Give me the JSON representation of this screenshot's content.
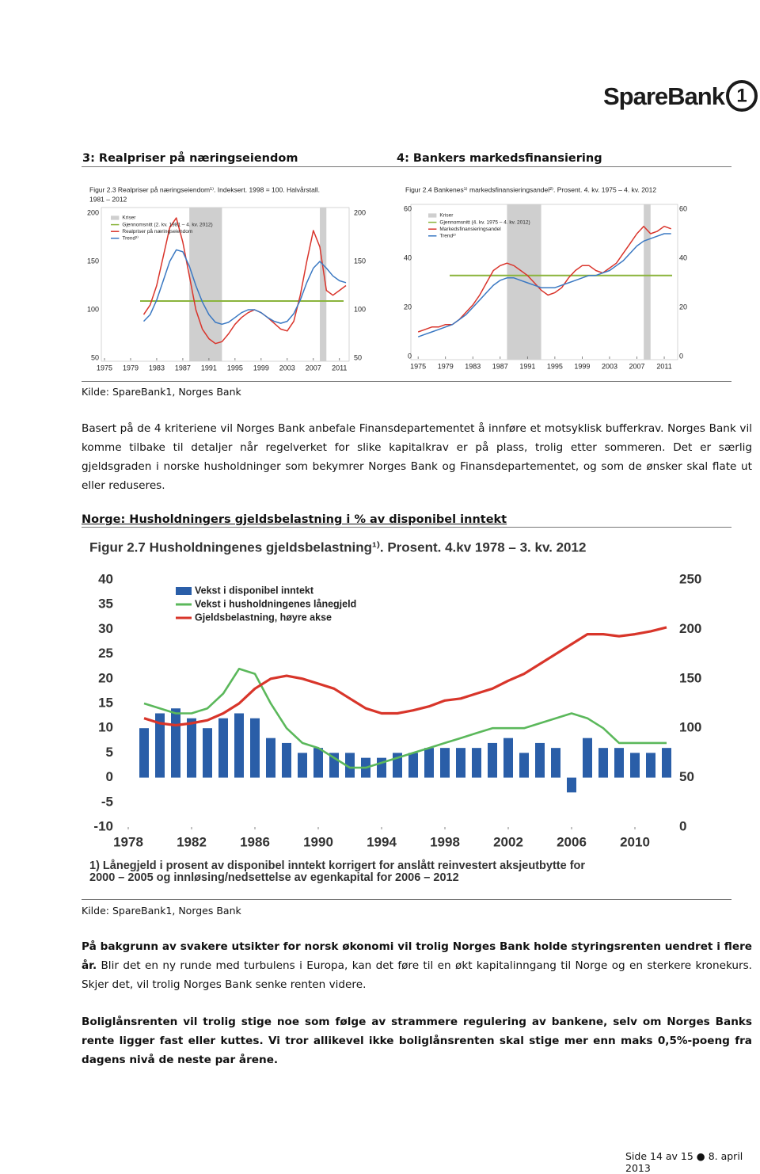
{
  "header": {
    "logo": "SpareBank",
    "logo_mark": "1"
  },
  "section_titles": [
    "3:  Realpriser på næringseiendom",
    "4: Bankers markedsfinansiering"
  ],
  "chart_data": [
    {
      "type": "line",
      "title": [
        "Figur 2.3 Realpriser på næringseiendom¹⁾. Indeksert. 1998 = 100. Halvårstall.",
        "1981 – 2012"
      ],
      "crises_label": "Kriser",
      "crises_color": "#cfcfcf",
      "crises": [
        [
          1988,
          1993
        ],
        [
          2008,
          2009
        ]
      ],
      "average": {
        "name": "Gjennomsnitt (2. kv. 1981 – 4. kv. 2012)",
        "color": "#8ab43c",
        "value": 109
      },
      "x": [
        1981,
        1982,
        1983,
        1984,
        1985,
        1986,
        1987,
        1988,
        1989,
        1990,
        1991,
        1992,
        1993,
        1994,
        1995,
        1996,
        1997,
        1998,
        1999,
        2000,
        2001,
        2002,
        2003,
        2004,
        2005,
        2006,
        2007,
        2008,
        2009,
        2010,
        2011,
        2012
      ],
      "series": [
        {
          "name": "Realpriser på næringseiendom",
          "color": "#d9342b",
          "values": [
            95,
            105,
            125,
            155,
            185,
            195,
            170,
            135,
            100,
            80,
            70,
            65,
            67,
            75,
            85,
            92,
            97,
            100,
            97,
            92,
            86,
            80,
            78,
            88,
            115,
            150,
            182,
            165,
            120,
            115,
            120,
            125
          ]
        },
        {
          "name": "Trend²⁾",
          "color": "#3a78c2",
          "values": [
            88,
            95,
            110,
            130,
            150,
            162,
            160,
            145,
            125,
            108,
            95,
            87,
            85,
            87,
            92,
            97,
            100,
            100,
            97,
            92,
            88,
            86,
            88,
            96,
            110,
            128,
            143,
            150,
            143,
            135,
            130,
            128
          ]
        }
      ],
      "xlim": [
        1975,
        2012
      ],
      "xticks": [
        1975,
        1979,
        1983,
        1987,
        1991,
        1995,
        1999,
        2003,
        2007,
        2011
      ],
      "ylim": [
        50,
        200
      ],
      "yticks": [
        50,
        100,
        150,
        200
      ],
      "mirror_y": true
    },
    {
      "type": "line",
      "title": [
        "Figur 2.4 Bankenes¹⁾ markedsfinansieringsandel²⁾. Prosent. 4. kv. 1975 – 4. kv. 2012"
      ],
      "crises_label": "Kriser",
      "crises_color": "#cfcfcf",
      "crises": [
        [
          1988,
          1993
        ],
        [
          2008,
          2009
        ]
      ],
      "average": {
        "name": "Gjennomsnitt (4. kv. 1975 – 4. kv. 2012)",
        "color": "#8ab43c",
        "value": 33
      },
      "x": [
        1975,
        1976,
        1977,
        1978,
        1979,
        1980,
        1981,
        1982,
        1983,
        1984,
        1985,
        1986,
        1987,
        1988,
        1989,
        1990,
        1991,
        1992,
        1993,
        1994,
        1995,
        1996,
        1997,
        1998,
        1999,
        2000,
        2001,
        2002,
        2003,
        2004,
        2005,
        2006,
        2007,
        2008,
        2009,
        2010,
        2011,
        2012
      ],
      "series": [
        {
          "name": "Markedsfinansieringsandel",
          "color": "#d9342b",
          "values": [
            10,
            11,
            12,
            12,
            13,
            13,
            15,
            18,
            21,
            25,
            30,
            35,
            37,
            38,
            37,
            35,
            33,
            30,
            27,
            25,
            26,
            28,
            32,
            35,
            37,
            37,
            35,
            34,
            36,
            38,
            42,
            46,
            50,
            53,
            50,
            51,
            53,
            52
          ]
        },
        {
          "name": "Trend²⁾",
          "color": "#3a78c2",
          "values": [
            8,
            9,
            10,
            11,
            12,
            13,
            15,
            17,
            20,
            23,
            26,
            29,
            31,
            32,
            32,
            31,
            30,
            29,
            28,
            28,
            28,
            29,
            30,
            31,
            32,
            33,
            33,
            34,
            35,
            37,
            39,
            42,
            45,
            47,
            48,
            49,
            50,
            50
          ]
        }
      ],
      "xlim": [
        1974.4,
        2012.5
      ],
      "xticks": [
        1975,
        1979,
        1983,
        1987,
        1991,
        1995,
        1999,
        2003,
        2007,
        2011
      ],
      "ylim": [
        0,
        60
      ],
      "yticks": [
        0,
        20,
        40,
        60
      ],
      "mirror_y": true
    },
    {
      "type": "bar_line",
      "title": [
        "Figur 2.7 Husholdningenes gjeldsbelastning¹⁾. Prosent. 4.kv 1978 – 3. kv. 2012"
      ],
      "x": [
        1979,
        1980,
        1981,
        1982,
        1983,
        1984,
        1985,
        1986,
        1987,
        1988,
        1989,
        1990,
        1991,
        1992,
        1993,
        1994,
        1995,
        1996,
        1997,
        1998,
        1999,
        2000,
        2001,
        2002,
        2003,
        2004,
        2005,
        2006,
        2007,
        2008,
        2009,
        2010,
        2011,
        2012
      ],
      "series": [
        {
          "name": "Vekst i disponibel inntekt",
          "type": "bar",
          "color": "#2a5ea8",
          "values": [
            10,
            13,
            14,
            12,
            10,
            12,
            13,
            12,
            8,
            7,
            5,
            6,
            5,
            5,
            4,
            4,
            5,
            5,
            6,
            6,
            6,
            6,
            7,
            8,
            5,
            7,
            6,
            -3,
            8,
            6,
            6,
            5,
            5,
            6
          ]
        },
        {
          "name": "Vekst i husholdningenes lånegjeld",
          "type": "line",
          "color": "#5bb85b",
          "values": [
            15,
            14,
            13,
            13,
            14,
            17,
            22,
            21,
            15,
            10,
            7,
            6,
            4,
            2,
            2,
            3,
            4,
            5,
            6,
            7,
            8,
            9,
            10,
            10,
            10,
            11,
            12,
            13,
            12,
            10,
            7,
            7,
            7,
            7
          ]
        },
        {
          "name": "Gjeldsbelastning, høyre akse",
          "type": "line",
          "axis": "y2",
          "color": "#d8352a",
          "values": [
            110,
            105,
            103,
            105,
            108,
            115,
            125,
            140,
            150,
            153,
            150,
            145,
            140,
            130,
            120,
            115,
            115,
            118,
            122,
            128,
            130,
            135,
            140,
            148,
            155,
            165,
            175,
            185,
            195,
            195,
            193,
            195,
            198,
            202
          ]
        }
      ],
      "xlim": [
        1977.4,
        2012.4
      ],
      "xticks": [
        1978,
        1982,
        1986,
        1990,
        1994,
        1998,
        2002,
        2006,
        2010
      ],
      "ylim": [
        -10,
        40
      ],
      "yticks": [
        -10,
        -5,
        0,
        5,
        10,
        15,
        20,
        25,
        30,
        35,
        40
      ],
      "y2lim": [
        0,
        250
      ],
      "y2ticks": [
        0,
        50,
        100,
        150,
        200,
        250
      ],
      "footnote": [
        "1) Lånegjeld i prosent av disponibel inntekt korrigert for anslått reinvestert aksjeutbytte for",
        "2000 – 2005 og innløsing/nedsettelse av egenkapital for 2006 – 2012"
      ]
    }
  ],
  "source_1": "Kilde: SpareBank1, Norges Bank",
  "paragraph_1": "Basert på de 4 kriteriene vil Norges Bank anbefale Finansdepartementet å innføre et motsyklisk bufferkrav. Norges Bank vil komme tilbake til detaljer når regelverket for slike kapitalkrav er på plass, trolig etter sommeren. Det er særlig gjeldsgraden i norske husholdninger som bekymrer Norges Bank og Finansdepartementet, og som de ønsker skal flate ut eller reduseres.",
  "section_title_2": "Norge:  Husholdningers gjeldsbelastning i % av disponibel inntekt",
  "source_2": "Kilde: SpareBank1, Norges Bank",
  "paragraph_2": {
    "bold": "På bakgrunn av svakere utsikter for norsk økonomi vil trolig Norges Bank holde styringsrenten uendret i flere år.",
    "normal": "Blir det en ny runde med turbulens i Europa, kan det føre til en økt kapitalinngang til Norge og en sterkere kronekurs. Skjer det, vil trolig Norges Bank senke renten videre."
  },
  "paragraph_3": "Boliglånsrenten vil trolig stige noe som følge av strammere regulering av bankene, selv om Norges Banks rente ligger fast eller kuttes. Vi tror allikevel ikke boliglånsrenten skal stige mer enn maks 0,5%-poeng fra dagens nivå de neste par årene.",
  "footer": {
    "page": "Side 14 av 15",
    "date": "8. april 2013"
  }
}
